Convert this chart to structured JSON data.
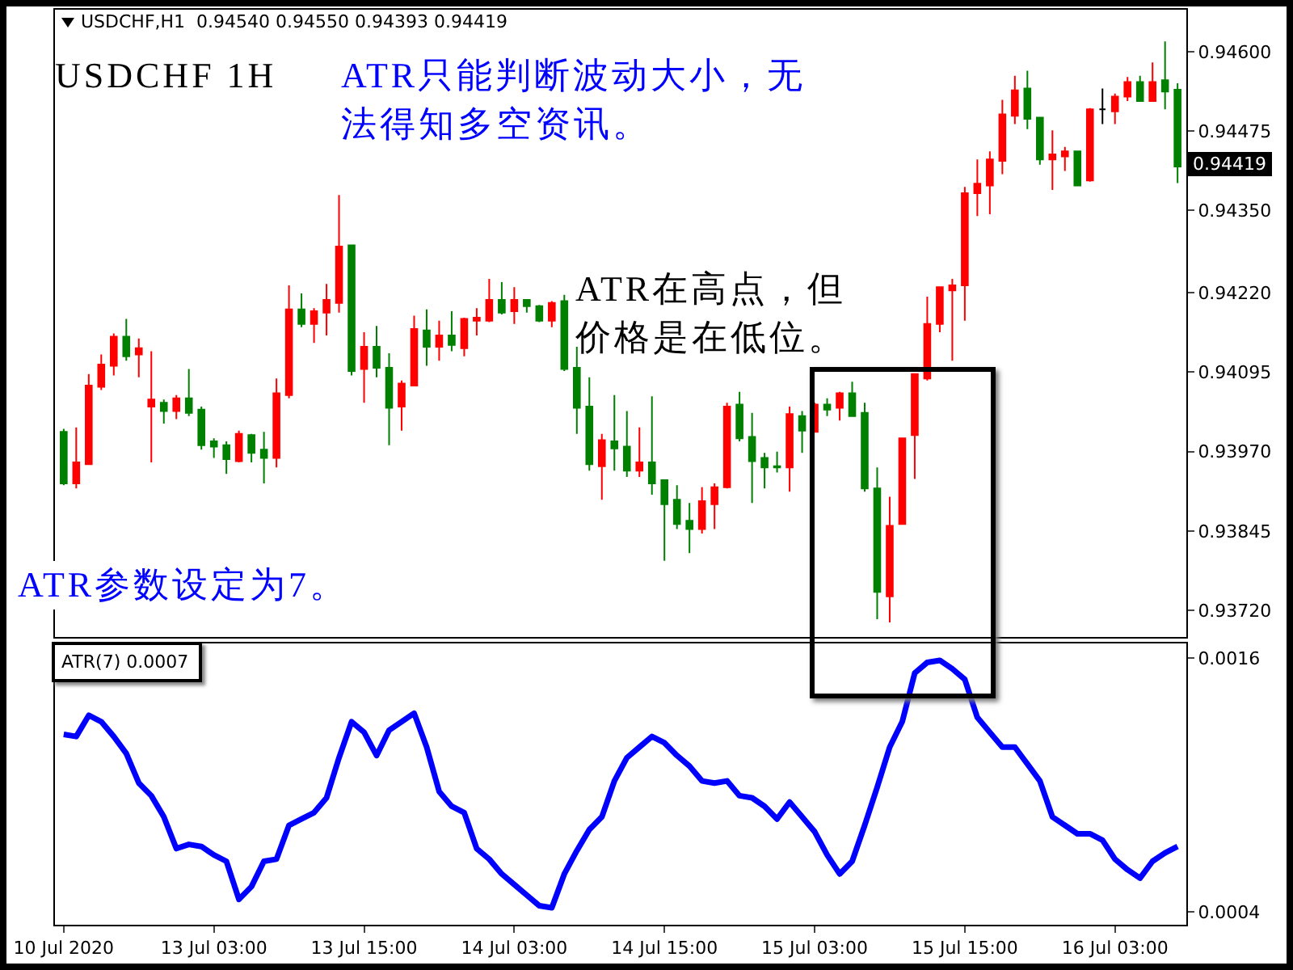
{
  "chart_data": [
    {
      "type": "candlestick",
      "title": "USDCHF,H1  0.94540 0.94550 0.94393 0.94419",
      "categories": [
        null,
        null,
        null,
        null,
        null,
        null,
        null,
        null,
        null,
        null,
        null,
        null,
        null,
        null,
        null,
        null,
        null,
        null,
        null,
        null,
        null,
        null,
        null,
        null,
        null,
        null,
        null,
        null,
        null,
        null,
        null,
        null,
        null,
        null,
        null,
        null,
        null,
        null,
        null,
        null,
        null,
        null,
        null,
        null,
        null,
        null,
        null,
        null,
        null,
        null,
        null,
        null,
        null,
        null,
        null,
        null,
        null,
        null,
        null,
        null,
        null,
        null,
        null,
        null,
        null,
        null,
        null,
        null,
        null,
        null,
        null,
        null,
        null,
        null,
        null,
        null,
        null,
        null,
        null,
        null,
        null,
        null,
        null,
        null,
        null,
        null,
        null,
        null,
        null,
        null
      ],
      "ohlc": [
        [
          0.94001,
          0.94006,
          0.93917,
          0.9392
        ],
        [
          0.9392,
          0.94008,
          0.93912,
          0.93953
        ],
        [
          0.9395,
          0.94092,
          0.9395,
          0.94074
        ],
        [
          0.94072,
          0.94123,
          0.94067,
          0.94107
        ],
        [
          0.94105,
          0.94156,
          0.9409,
          0.94151
        ],
        [
          0.94151,
          0.94179,
          0.94113,
          0.9412
        ],
        [
          0.94123,
          0.94148,
          0.94087,
          0.94133
        ],
        [
          0.94041,
          0.94128,
          0.93953,
          0.94052
        ],
        [
          0.94047,
          0.94052,
          0.94014,
          0.94034
        ],
        [
          0.94034,
          0.94059,
          0.94021,
          0.94054
        ],
        [
          0.94054,
          0.941,
          0.94026,
          0.94031
        ],
        [
          0.94036,
          0.94041,
          0.93973,
          0.9398
        ],
        [
          0.93986,
          0.93991,
          0.9396,
          0.93978
        ],
        [
          0.9398,
          0.93986,
          0.93935,
          0.93958
        ],
        [
          0.93955,
          0.94003,
          0.93953,
          0.93998
        ],
        [
          0.93996,
          0.93998,
          0.93953,
          0.93968
        ],
        [
          0.93973,
          0.94001,
          0.9392,
          0.9396
        ],
        [
          0.9396,
          0.94085,
          0.93945,
          0.94062
        ],
        [
          0.94059,
          0.94232,
          0.94054,
          0.94194
        ],
        [
          0.94194,
          0.94219,
          0.94166,
          0.94171
        ],
        [
          0.94171,
          0.94196,
          0.94141,
          0.94191
        ],
        [
          0.94189,
          0.94234,
          0.94153,
          0.94209
        ],
        [
          0.94204,
          0.94374,
          0.94189,
          0.94293
        ],
        [
          0.94295,
          0.94295,
          0.9409,
          0.94097
        ],
        [
          0.941,
          0.94158,
          0.94047,
          0.94135
        ],
        [
          0.94135,
          0.94168,
          0.94087,
          0.94102
        ],
        [
          0.94102,
          0.94125,
          0.9398,
          0.94039
        ],
        [
          0.94041,
          0.94082,
          0.94003,
          0.94077
        ],
        [
          0.94074,
          0.94184,
          0.94074,
          0.94163
        ],
        [
          0.94161,
          0.94194,
          0.94105,
          0.94135
        ],
        [
          0.94135,
          0.94176,
          0.94113,
          0.94153
        ],
        [
          0.94153,
          0.94191,
          0.94128,
          0.94138
        ],
        [
          0.94133,
          0.94181,
          0.9412,
          0.94179
        ],
        [
          0.94176,
          0.94196,
          0.94153,
          0.94181
        ],
        [
          0.94176,
          0.94242,
          0.94174,
          0.94209
        ],
        [
          0.94209,
          0.94237,
          0.94186,
          0.94189
        ],
        [
          0.94191,
          0.94229,
          0.94171,
          0.94209
        ],
        [
          0.94209,
          0.94209,
          0.94189,
          0.94199
        ],
        [
          0.94199,
          0.94201,
          0.94174,
          0.94176
        ],
        [
          0.94176,
          0.94207,
          0.94166,
          0.94204
        ],
        [
          0.94207,
          0.94217,
          0.94097,
          0.941
        ],
        [
          0.94102,
          0.94135,
          0.93998,
          0.94039
        ],
        [
          0.94041,
          0.94087,
          0.9394,
          0.9395
        ],
        [
          0.93947,
          0.93998,
          0.93894,
          0.93988
        ],
        [
          0.93986,
          0.94059,
          0.9394,
          0.93975
        ],
        [
          0.93978,
          0.94034,
          0.9393,
          0.9394
        ],
        [
          0.9394,
          0.94008,
          0.9393,
          0.93953
        ],
        [
          0.93953,
          0.94057,
          0.93902,
          0.9392
        ],
        [
          0.93925,
          0.93925,
          0.93798,
          0.93887
        ],
        [
          0.93894,
          0.93917,
          0.93848,
          0.93856
        ],
        [
          0.93861,
          0.93889,
          0.9381,
          0.93848
        ],
        [
          0.93848,
          0.93914,
          0.93841,
          0.93892
        ],
        [
          0.93887,
          0.9392,
          0.93848,
          0.93914
        ],
        [
          0.93914,
          0.94047,
          0.93912,
          0.94041
        ],
        [
          0.94044,
          0.94064,
          0.93986,
          0.93991
        ],
        [
          0.93993,
          0.94031,
          0.93889,
          0.93955
        ],
        [
          0.9396,
          0.93968,
          0.93912,
          0.93945
        ],
        [
          0.93947,
          0.9397,
          0.93937,
          0.93945
        ],
        [
          0.93945,
          0.94041,
          0.93907,
          0.94029
        ],
        [
          0.94026,
          0.94034,
          0.93968,
          0.94003
        ],
        [
          0.94001,
          0.94047,
          0.94001,
          0.94044
        ],
        [
          0.94044,
          0.94054,
          0.94026,
          0.94036
        ],
        [
          0.94039,
          0.94064,
          0.94019,
          0.94062
        ],
        [
          0.94062,
          0.9408,
          0.94026,
          0.94026
        ],
        [
          0.94031,
          0.94047,
          0.93907,
          0.93912
        ],
        [
          0.93912,
          0.93945,
          0.93706,
          0.93749
        ],
        [
          0.93742,
          0.93899,
          0.93701,
          0.93853
        ],
        [
          0.93856,
          0.93991,
          0.93856,
          0.93991
        ],
        [
          0.93996,
          0.94092,
          0.93927,
          0.94092
        ],
        [
          0.94085,
          0.94214,
          0.94082,
          0.94171
        ],
        [
          0.94171,
          0.94229,
          0.94158,
          0.94229
        ],
        [
          0.94224,
          0.94242,
          0.94113,
          0.94232
        ],
        [
          0.94232,
          0.94387,
          0.94176,
          0.94377
        ],
        [
          0.94377,
          0.9443,
          0.94341,
          0.94392
        ],
        [
          0.94389,
          0.94443,
          0.94344,
          0.9443
        ],
        [
          0.94428,
          0.94524,
          0.94407,
          0.94501
        ],
        [
          0.94499,
          0.94562,
          0.94486,
          0.94539
        ],
        [
          0.94542,
          0.9457,
          0.94478,
          0.94494
        ],
        [
          0.94496,
          0.94496,
          0.94422,
          0.9443
        ],
        [
          0.9443,
          0.94476,
          0.94382,
          0.94438
        ],
        [
          0.94435,
          0.9445,
          0.94412,
          0.94443
        ],
        [
          0.94443,
          0.94443,
          0.94389,
          0.94389
        ],
        [
          0.94397,
          0.94511,
          0.94395,
          0.94509
        ],
        [
          0.94509,
          0.94542,
          0.94486,
          0.94509
        ],
        [
          0.94506,
          0.94534,
          0.94486,
          0.94529
        ],
        [
          0.94529,
          0.9456,
          0.94522,
          0.94552
        ],
        [
          0.94552,
          0.94562,
          0.94522,
          0.94522
        ],
        [
          0.94522,
          0.94583,
          0.94522,
          0.94552
        ],
        [
          0.94555,
          0.94616,
          0.94509,
          0.94537
        ],
        [
          0.9454,
          0.9455,
          0.94393,
          0.94419
        ]
      ],
      "colors": [
        "#008000",
        "#ff0000",
        "#ff0000",
        "#ff0000",
        "#ff0000",
        "#008000",
        "#ff0000",
        "#ff0000",
        "#008000",
        "#ff0000",
        "#008000",
        "#008000",
        "#008000",
        "#008000",
        "#ff0000",
        "#008000",
        "#008000",
        "#ff0000",
        "#ff0000",
        "#008000",
        "#ff0000",
        "#ff0000",
        "#ff0000",
        "#008000",
        "#ff0000",
        "#008000",
        "#008000",
        "#ff0000",
        "#ff0000",
        "#008000",
        "#ff0000",
        "#008000",
        "#ff0000",
        "#ff0000",
        "#ff0000",
        "#008000",
        "#ff0000",
        "#008000",
        "#008000",
        "#ff0000",
        "#008000",
        "#008000",
        "#008000",
        "#ff0000",
        "#008000",
        "#008000",
        "#ff0000",
        "#008000",
        "#008000",
        "#008000",
        "#008000",
        "#ff0000",
        "#ff0000",
        "#ff0000",
        "#008000",
        "#008000",
        "#008000",
        "#008000",
        "#ff0000",
        "#008000",
        "#ff0000",
        "#008000",
        "#ff0000",
        "#008000",
        "#008000",
        "#008000",
        "#ff0000",
        "#ff0000",
        "#ff0000",
        "#ff0000",
        "#ff0000",
        "#ff0000",
        "#ff0000",
        "#ff0000",
        "#ff0000",
        "#ff0000",
        "#ff0000",
        "#008000",
        "#008000",
        "#ff0000",
        "#ff0000",
        "#008000",
        "#ff0000",
        "#000000",
        "#ff0000",
        "#ff0000",
        "#008000",
        "#ff0000",
        "#008000",
        "#008000"
      ],
      "ylim": [
        0.93678,
        0.94666
      ],
      "yticks": [
        {
          "value": 0.946,
          "label": "0.94600"
        },
        0.94475,
        {
          "value": 0.9435,
          "label": "0.94350"
        },
        {
          "value": 0.9422,
          "label": "0.94220"
        },
        0.94095,
        {
          "value": 0.9397,
          "label": "0.93970"
        },
        0.93845,
        {
          "value": 0.9372,
          "label": "0.93720"
        }
      ],
      "tick_labels": "y",
      "annotations": [
        "USDCHF 1H",
        "ATR只能判断波动大小，无法得知多空资讯。",
        "ATR在高点，但价格是在低位。",
        "ATR参数设定为7。",
        "0.94419"
      ]
    },
    {
      "type": "line",
      "title": "ATR(7) 0.0007",
      "categories": [
        "10 Jul 2020",
        null,
        null,
        null,
        null,
        null,
        null,
        null,
        null,
        null,
        null,
        null,
        "13 Jul 03:00",
        null,
        null,
        null,
        null,
        null,
        null,
        null,
        null,
        null,
        null,
        null,
        "13 Jul 15:00",
        null,
        null,
        null,
        null,
        null,
        null,
        null,
        null,
        null,
        null,
        null,
        "14 Jul 03:00",
        null,
        null,
        null,
        null,
        null,
        null,
        null,
        null,
        null,
        null,
        null,
        "14 Jul 15:00",
        null,
        null,
        null,
        null,
        null,
        null,
        null,
        null,
        null,
        null,
        null,
        "15 Jul 03:00",
        null,
        null,
        null,
        null,
        null,
        null,
        null,
        null,
        null,
        null,
        null,
        "15 Jul 15:00",
        null,
        null,
        null,
        null,
        null,
        null,
        null,
        null,
        null,
        null,
        null,
        "16 Jul 03:00",
        null,
        null,
        null,
        null,
        null
      ],
      "series": [
        {
          "color": "#0000ff",
          "values": [
            0.00124,
            0.00123,
            0.00133,
            0.0013,
            0.00123,
            0.00115,
            0.00101,
            0.00095,
            0.00085,
            0.0007,
            0.00072,
            0.00071,
            0.00067,
            0.00064,
            0.00046,
            0.00052,
            0.00064,
            0.00065,
            0.00081,
            0.00084,
            0.00087,
            0.00094,
            0.00113,
            0.0013,
            0.00125,
            0.00114,
            0.00126,
            0.0013,
            0.00134,
            0.00118,
            0.00097,
            0.0009,
            0.00087,
            0.0007,
            0.00065,
            0.00058,
            0.00053,
            0.00048,
            0.00043,
            0.00042,
            0.00058,
            0.00069,
            0.00079,
            0.00085,
            0.00102,
            0.00113,
            0.00118,
            0.00123,
            0.0012,
            0.00114,
            0.00109,
            0.00102,
            0.00101,
            0.00102,
            0.00095,
            0.00094,
            0.0009,
            0.00084,
            0.00092,
            0.00085,
            0.00078,
            0.00067,
            0.00058,
            0.00064,
            0.00081,
            0.00099,
            0.00118,
            0.0013,
            0.00153,
            0.00158,
            0.00159,
            0.00155,
            0.0015,
            0.00132,
            0.00125,
            0.00118,
            0.00118,
            0.0011,
            0.00102,
            0.00085,
            0.00081,
            0.00077,
            0.00077,
            0.00074,
            0.00065,
            0.0006,
            0.00056,
            0.00064,
            0.00068,
            0.00071
          ]
        }
      ],
      "ylim": [
        0.00034,
        0.00167
      ],
      "yticks": [
        0.0016,
        0.0004
      ]
    }
  ]
}
